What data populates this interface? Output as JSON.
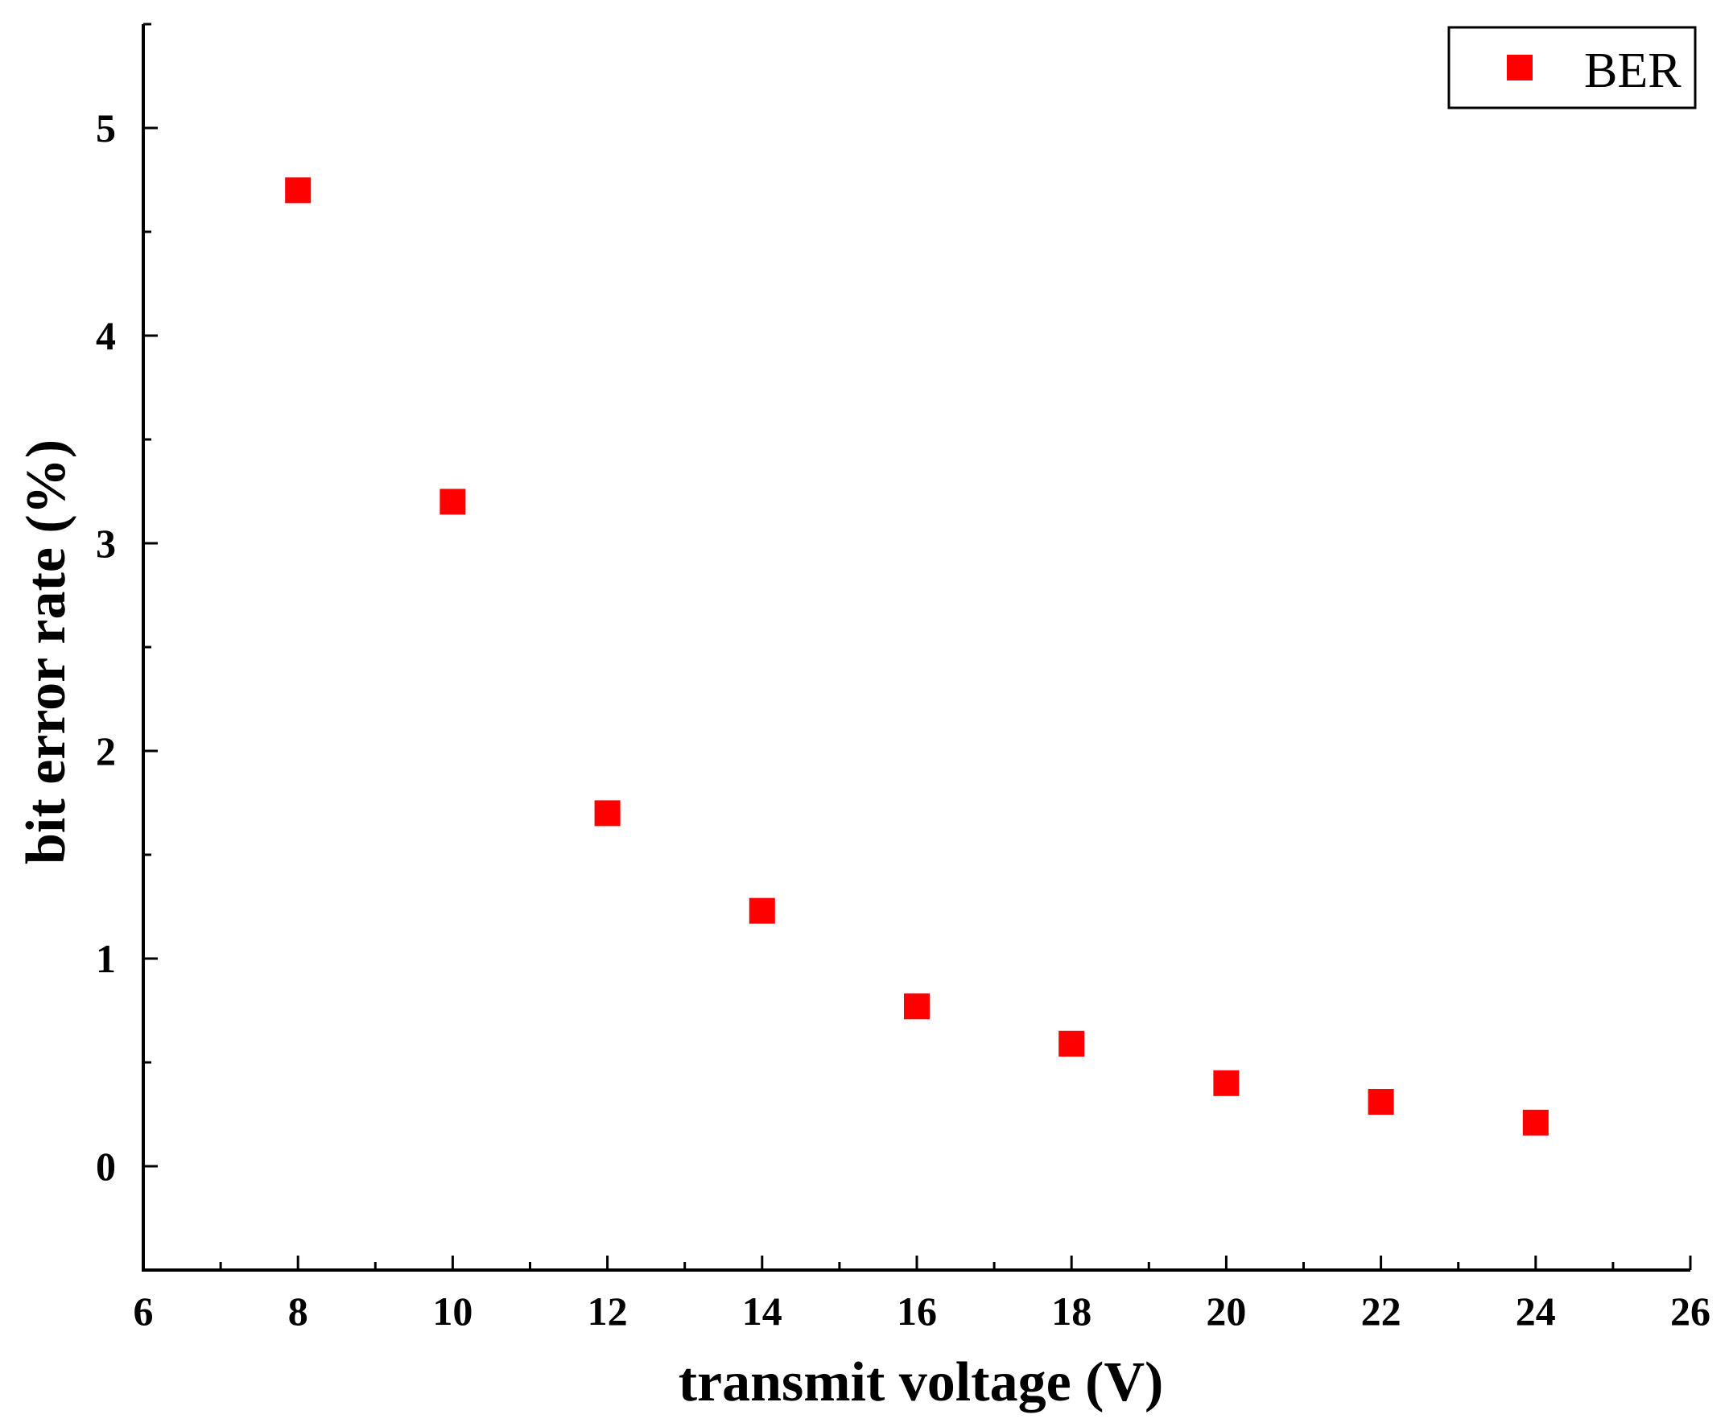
{
  "chart_data": {
    "type": "scatter",
    "title": "",
    "xlabel": "transmit voltage (V)",
    "ylabel": "bit error rate (%)",
    "xlim": [
      6,
      26
    ],
    "ylim": [
      -0.5,
      5.5
    ],
    "x_ticks": [
      6,
      8,
      10,
      12,
      14,
      16,
      18,
      20,
      22,
      24,
      26
    ],
    "x_tick_labels": [
      "6",
      "8",
      "10",
      "12",
      "14",
      "16",
      "18",
      "20",
      "22",
      "24",
      "26"
    ],
    "y_ticks": [
      0,
      1,
      2,
      3,
      4,
      5
    ],
    "y_tick_labels": [
      "0",
      "1",
      "2",
      "3",
      "4",
      "5"
    ],
    "grid": false,
    "legend_position": "top-right",
    "series": [
      {
        "name": "BER",
        "color": "#ff0000",
        "marker": "square",
        "x": [
          8,
          10,
          12,
          14,
          16,
          18,
          20,
          22,
          24
        ],
        "y": [
          4.7,
          3.2,
          1.7,
          1.23,
          0.77,
          0.59,
          0.4,
          0.31,
          0.21
        ]
      }
    ]
  }
}
